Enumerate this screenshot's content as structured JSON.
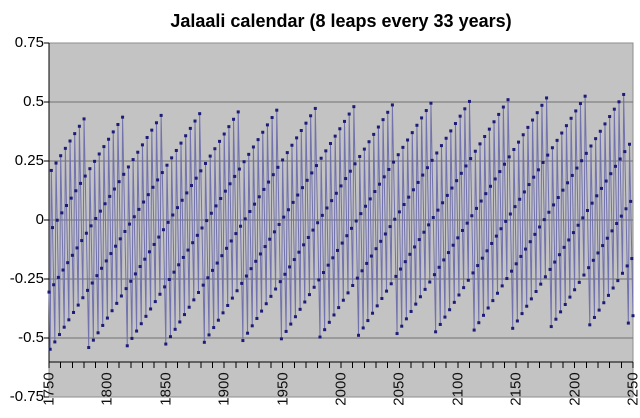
{
  "chart_data": {
    "type": "line",
    "title": "Jalaali calendar (8 leaps every 33 years)",
    "xlabel": "",
    "ylabel": "",
    "x_start": 1750,
    "x_end": 2250,
    "x_step_years": 1,
    "ylim": [
      -0.75,
      0.75
    ],
    "ytick_values": [
      0.75,
      0.5,
      0.25,
      0,
      -0.25,
      -0.5,
      -0.75
    ],
    "ytick_labels": [
      "0.75",
      "0.5",
      "0.25",
      "0",
      "-0.25",
      "-0.5",
      "-0.75"
    ],
    "xtick_labeled_values": [
      1750,
      1800,
      1850,
      1900,
      1950,
      2000,
      2050,
      2100,
      2150,
      2200,
      2250
    ],
    "xtick_labels": [
      "1750",
      "1800",
      "1850",
      "1900",
      "1950",
      "2000",
      "2050",
      "2100",
      "2150",
      "2200",
      "2250"
    ],
    "xtick_minor_step_years": 10,
    "grid": true,
    "legend": false,
    "marker_style": "square",
    "series_rule": {
      "description": "Accumulated offset (in days) of the Jalaali calendar against the mean tropical year, one point per year 1750-2250. Each year the offset falls by 0.2422 day; on each leap year it jumps up by +1 day. Leap years occur 8 times per 33-year cycle, producing the rising sawtooth envelope (peaks climb from ~0.21 to ~0.53, troughs from ~-0.55 to ~-0.44).",
      "initial_year": 1750,
      "initial_value": -0.3056,
      "drift_per_year": -0.2422,
      "leap_jump": 1,
      "leap_cycle_years": 33,
      "cycle_anchor_year": 1752,
      "leap_offsets_mod33": [
        0,
        4,
        8,
        12,
        16,
        20,
        24,
        28
      ],
      "first_values_1750_to_1757": [
        -0.3056,
        -0.5478,
        0.21,
        -0.0322,
        -0.2744,
        -0.5166,
        0.2412,
        -0.001
      ]
    },
    "colors": {
      "plot_background": "#c3c3c3",
      "plot_border": "#8c8c8c",
      "gridline": "#707070",
      "axis": "#000000",
      "series_line": "#7272ad",
      "series_marker": "#1b1b78",
      "label_text": "#000000"
    }
  }
}
